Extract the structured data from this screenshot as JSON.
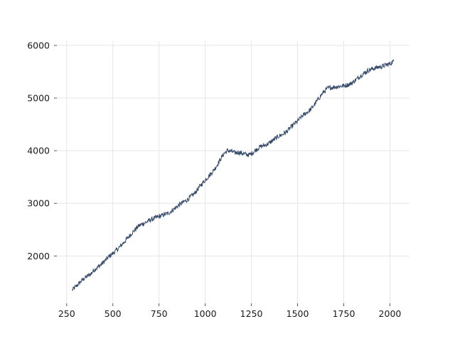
{
  "chart_data": {
    "type": "line",
    "title": "",
    "xlabel": "",
    "ylabel": "",
    "xlim": [
      197,
      2106
    ],
    "ylim": [
      1100,
      6080
    ],
    "x_ticks": [
      250,
      500,
      750,
      1000,
      1250,
      1500,
      1750,
      2000
    ],
    "y_ticks": [
      2000,
      3000,
      4000,
      5000,
      6000
    ],
    "x_tick_labels": [
      "250",
      "500",
      "750",
      "1000",
      "1250",
      "1500",
      "1750",
      "2000"
    ],
    "y_tick_labels": [
      "2000",
      "3000",
      "4000",
      "5000",
      "6000"
    ],
    "grid": true,
    "legend": "none",
    "series": [
      {
        "color": "#34496a",
        "x": [
          280,
          300,
          320,
          340,
          360,
          380,
          400,
          420,
          440,
          460,
          480,
          500,
          520,
          540,
          560,
          580,
          600,
          620,
          640,
          660,
          680,
          700,
          720,
          740,
          760,
          780,
          800,
          820,
          840,
          860,
          880,
          900,
          920,
          940,
          960,
          980,
          1000,
          1020,
          1040,
          1060,
          1080,
          1100,
          1120,
          1140,
          1160,
          1180,
          1200,
          1220,
          1240,
          1260,
          1280,
          1300,
          1320,
          1340,
          1360,
          1380,
          1400,
          1420,
          1440,
          1460,
          1480,
          1500,
          1520,
          1540,
          1560,
          1580,
          1600,
          1620,
          1640,
          1660,
          1680,
          1700,
          1720,
          1740,
          1760,
          1780,
          1800,
          1820,
          1840,
          1860,
          1880,
          1900,
          1920,
          1940,
          1960,
          1980,
          2000,
          2020
        ],
        "y": [
          1350,
          1420,
          1490,
          1560,
          1610,
          1660,
          1740,
          1790,
          1850,
          1920,
          1990,
          2050,
          2110,
          2180,
          2260,
          2340,
          2420,
          2500,
          2570,
          2610,
          2640,
          2680,
          2710,
          2740,
          2760,
          2790,
          2810,
          2860,
          2920,
          2970,
          3020,
          3060,
          3120,
          3180,
          3270,
          3360,
          3440,
          3520,
          3600,
          3700,
          3820,
          3940,
          4000,
          3990,
          3960,
          3970,
          3950,
          3930,
          3920,
          3970,
          4030,
          4080,
          4100,
          4130,
          4180,
          4230,
          4280,
          4310,
          4360,
          4430,
          4500,
          4560,
          4640,
          4700,
          4750,
          4820,
          4920,
          5020,
          5110,
          5180,
          5200,
          5210,
          5220,
          5230,
          5240,
          5260,
          5300,
          5360,
          5420,
          5470,
          5520,
          5550,
          5570,
          5590,
          5600,
          5630,
          5650,
          5700
        ]
      }
    ]
  }
}
